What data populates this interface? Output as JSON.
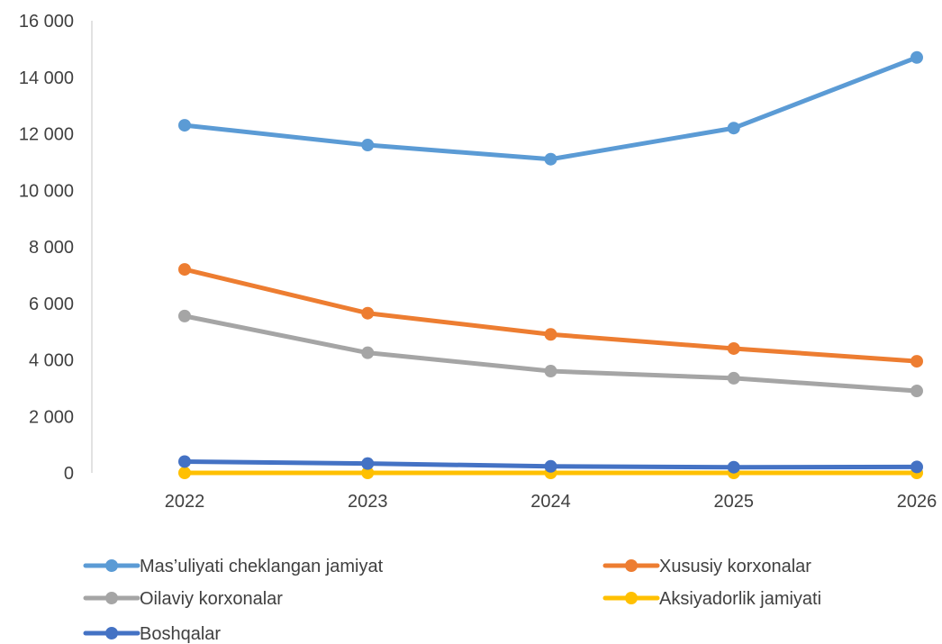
{
  "chart_data": {
    "type": "line",
    "title": "",
    "xlabel": "",
    "ylabel": "",
    "categories": [
      "2022",
      "2023",
      "2024",
      "2025",
      "2026"
    ],
    "ylim": [
      0,
      16000
    ],
    "yticks": [
      0,
      2000,
      4000,
      6000,
      8000,
      10000,
      12000,
      14000,
      16000
    ],
    "ytick_labels": [
      "0",
      "2 000",
      "4 000",
      "6 000",
      "8 000",
      "10 000",
      "12 000",
      "14 000",
      "16 000"
    ],
    "grid": false,
    "legend_position": "bottom",
    "series": [
      {
        "name": "Mas’uliyati cheklangan jamiyat",
        "color": "#5B9BD5",
        "values": [
          12300,
          11600,
          11100,
          12200,
          14700
        ]
      },
      {
        "name": "Xususiy korxonalar",
        "color": "#ED7D31",
        "values": [
          7200,
          5650,
          4900,
          4400,
          3950
        ]
      },
      {
        "name": "Oilaviy korxonalar",
        "color": "#A5A5A5",
        "values": [
          5550,
          4250,
          3600,
          3350,
          2900
        ]
      },
      {
        "name": "Aksiyadorlik jamiyati",
        "color": "#FFC000",
        "values": [
          0,
          0,
          0,
          0,
          0
        ]
      },
      {
        "name": "Boshqalar",
        "color": "#4472C4",
        "values": [
          400,
          330,
          230,
          200,
          210
        ]
      }
    ]
  }
}
